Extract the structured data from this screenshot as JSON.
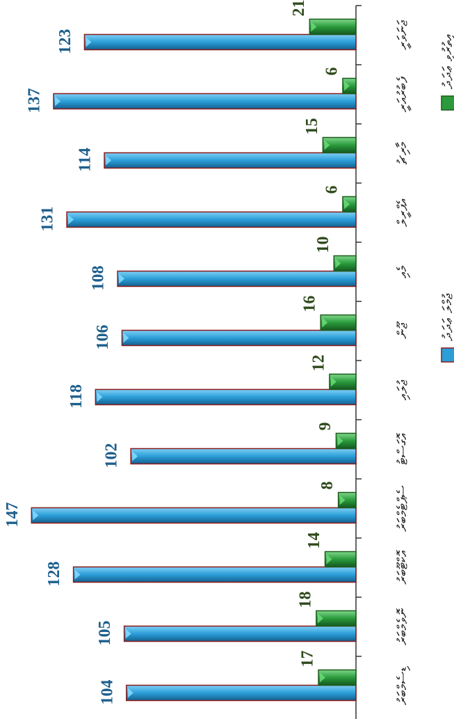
{
  "chart_data": {
    "type": "bar",
    "orientation": "horizontal",
    "categories": [
      "ޖަނަވަރީ",
      "ފެބުރުއަރީ",
      "މާރިޗު",
      "އެޕްރީލް",
      "މެއި",
      "ޖޫން",
      "ޖުލައި",
      "އޮގަސްޓު",
      "ސެޕްޓެމްބަރު",
      "އޮކްޓޫބަރު",
      "ނޮވެމްބަރު",
      "ޑިސެމްބަރު"
    ],
    "series": [
      {
        "name": "ޖުމްލަ ޢަދަދު",
        "color": "#2b9ed8",
        "values": [
          123,
          137,
          114,
          131,
          108,
          106,
          118,
          102,
          147,
          128,
          105,
          104
        ]
      },
      {
        "name": "އިތުރުވި ޢަދަދު",
        "color": "#2a9a3c",
        "values": [
          21,
          6,
          15,
          6,
          10,
          16,
          12,
          9,
          8,
          14,
          18,
          17
        ]
      }
    ],
    "xlim": [
      0,
      160
    ],
    "legend": "top-right"
  }
}
